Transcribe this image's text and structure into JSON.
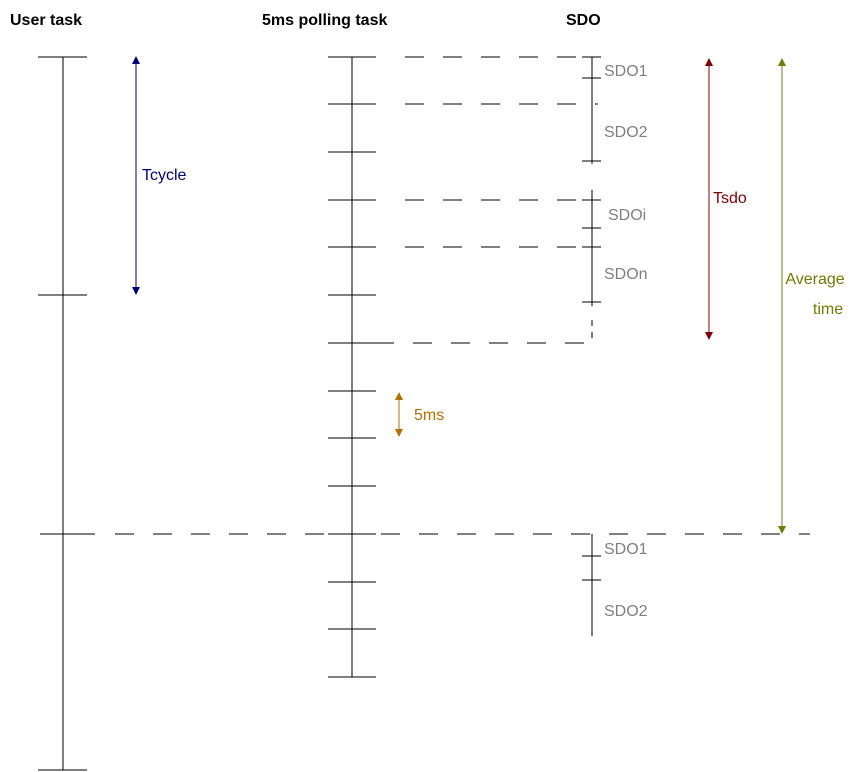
{
  "headers": {
    "user_task": "User task",
    "polling_task": "5ms polling task",
    "sdo": "SDO"
  },
  "labels": {
    "tcycle": "Tcycle",
    "tsdo": "Tsdo",
    "average_line1": "Average",
    "average_line2": "time",
    "five_ms": "5ms"
  },
  "sdo_labels_cycle1": [
    "SDO1",
    "SDO2",
    "SDOi",
    "SDOn"
  ],
  "sdo_labels_cycle2": [
    "SDO1",
    "SDO2"
  ],
  "colors": {
    "tcycle": "#00007f",
    "tsdo": "#7f0000",
    "average": "#6b7f00",
    "five_ms": "#b86e00",
    "sdo_text": "#808080",
    "lines": "#000000"
  }
}
